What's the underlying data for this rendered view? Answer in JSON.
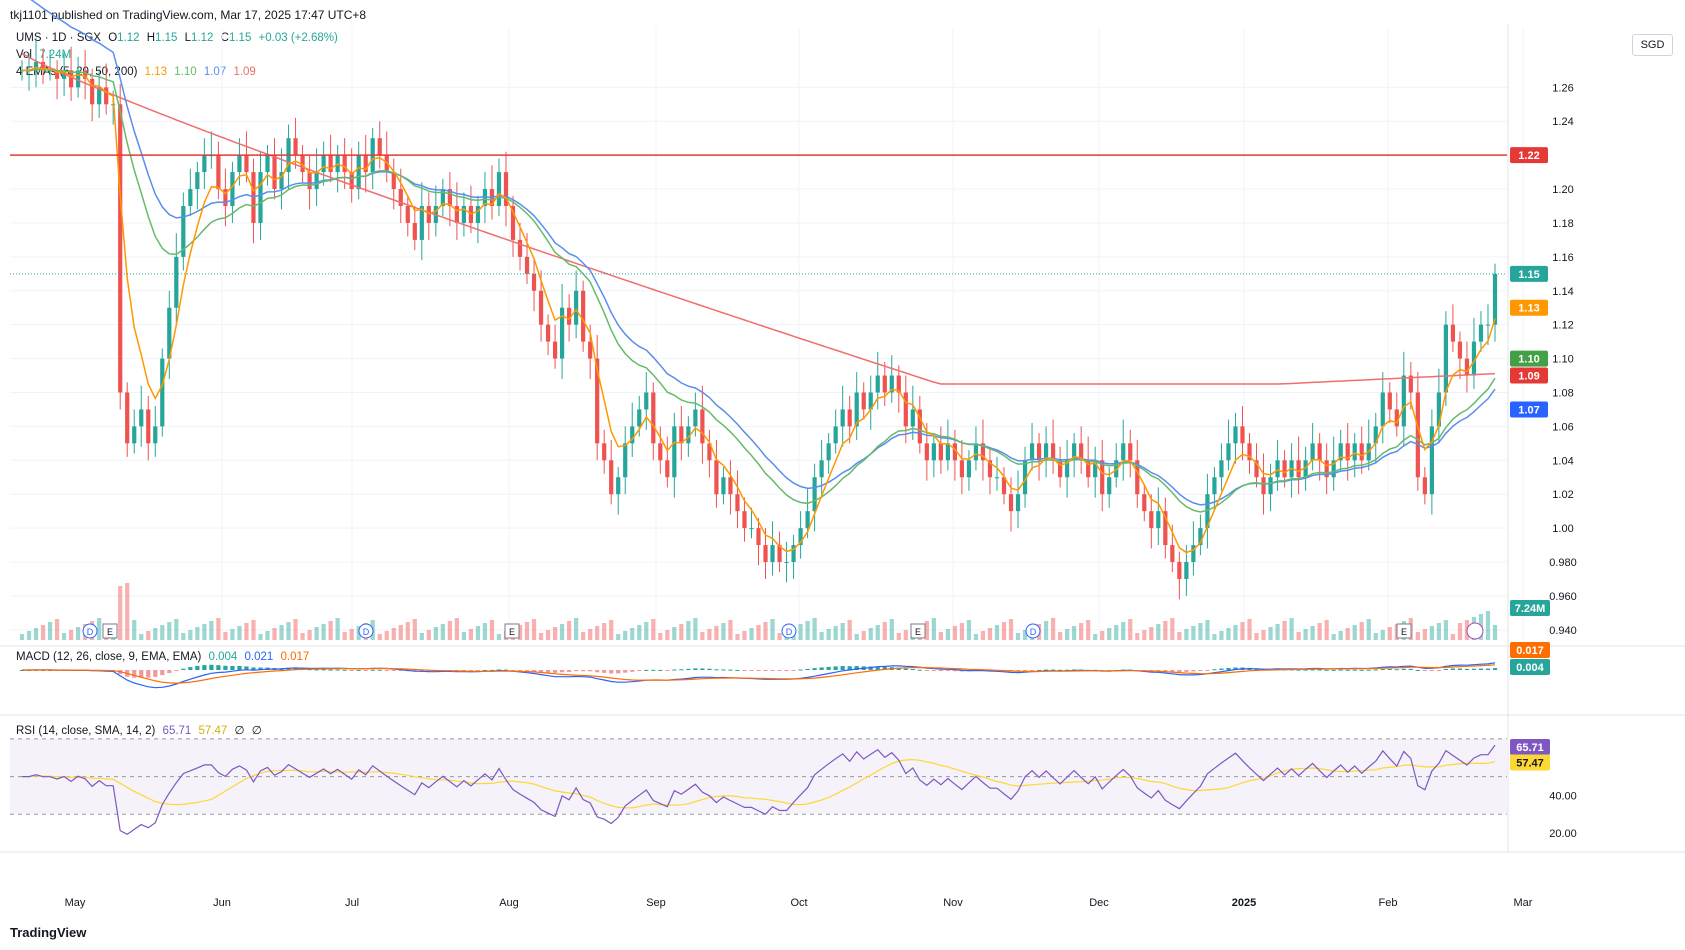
{
  "header": {
    "publisher": "tkj1101 published on TradingView.com, Mar 17, 2025 17:47 UTC+8",
    "symbol": "UMS · 1D · SGX",
    "ohlc": {
      "o_label": "O",
      "o": "1.12",
      "h_label": "H",
      "h": "1.15",
      "l_label": "L",
      "l": "1.12",
      "c_label": "C",
      "c": "1.15",
      "change": "+0.03 (+2.68%)"
    },
    "vol_label": "Vol",
    "vol_value": "7.24M",
    "ema_label": "4 EMAs (5, 20, 50, 200)",
    "ema_values": [
      "1.13",
      "1.10",
      "1.07",
      "1.09"
    ],
    "macd_label": "MACD (12, 26, close, 9, EMA, EMA)",
    "macd_values": [
      "0.004",
      "0.021",
      "0.017"
    ],
    "rsi_label": "RSI (14, close, SMA, 14, 2)",
    "rsi_values": [
      "65.71",
      "57.47",
      "∅",
      "∅"
    ],
    "currency": "SGD"
  },
  "brand": "TradingView",
  "colors": {
    "up": "#26a69a",
    "down": "#ef5350",
    "ema5": "#ff9800",
    "ema20": "#66bb6a",
    "ema50": "#5b8def",
    "ema200": "#f06e6e",
    "resistance": "#e53935",
    "rsi": "#7e57c2",
    "rsi_ma": "#fdd835",
    "macd": "#2962ff",
    "signal": "#ff6d00"
  },
  "chart_data": {
    "type": "candlestick",
    "symbol": "UMS",
    "exchange": "SGX",
    "interval": "1D",
    "price_axis_ticks": [
      0.94,
      0.96,
      0.98,
      1.0,
      1.02,
      1.04,
      1.06,
      1.08,
      1.1,
      1.12,
      1.14,
      1.16,
      1.18,
      1.2,
      1.24,
      1.26
    ],
    "price_axis_tick_labels": [
      "0.940",
      "0.960",
      "0.980",
      "1.00",
      "1.02",
      "1.04",
      "1.06",
      "1.08",
      "1.10",
      "1.12",
      "1.14",
      "1.16",
      "1.18",
      "1.20",
      "1.24",
      "1.26"
    ],
    "ylim": [
      0.934,
      1.295
    ],
    "time_axis_labels": [
      "May",
      "Jun",
      "Jul",
      "Aug",
      "Sep",
      "Oct",
      "Nov",
      "Dec",
      "2025",
      "Feb",
      "Mar"
    ],
    "price_tags": [
      {
        "label": "1.22",
        "value": 1.22,
        "color": "#e53935"
      },
      {
        "label": "1.15",
        "value": 1.15,
        "color": "#26a69a"
      },
      {
        "label": "1.13",
        "value": 1.13,
        "color": "#ff9800"
      },
      {
        "label": "1.10",
        "value": 1.1,
        "color": "#43a047"
      },
      {
        "label": "1.09",
        "value": 1.09,
        "color": "#e53935"
      },
      {
        "label": "1.07",
        "value": 1.07,
        "color": "#2962ff"
      }
    ],
    "volume_tag": "7.24M",
    "horizontal_line": 1.22,
    "last_price": 1.15,
    "closes": [
      1.27,
      1.27,
      1.275,
      1.27,
      1.27,
      1.265,
      1.27,
      1.26,
      1.27,
      1.265,
      1.25,
      1.26,
      1.25,
      1.25,
      1.08,
      1.05,
      1.06,
      1.07,
      1.05,
      1.06,
      1.1,
      1.13,
      1.16,
      1.19,
      1.2,
      1.21,
      1.22,
      1.22,
      1.2,
      1.19,
      1.21,
      1.22,
      1.21,
      1.18,
      1.21,
      1.22,
      1.2,
      1.21,
      1.23,
      1.22,
      1.21,
      1.2,
      1.21,
      1.22,
      1.21,
      1.22,
      1.21,
      1.2,
      1.22,
      1.21,
      1.23,
      1.22,
      1.21,
      1.2,
      1.19,
      1.18,
      1.17,
      1.19,
      1.18,
      1.19,
      1.2,
      1.19,
      1.18,
      1.19,
      1.18,
      1.19,
      1.2,
      1.19,
      1.21,
      1.19,
      1.17,
      1.16,
      1.15,
      1.14,
      1.12,
      1.11,
      1.1,
      1.13,
      1.12,
      1.14,
      1.11,
      1.1,
      1.05,
      1.04,
      1.02,
      1.03,
      1.05,
      1.06,
      1.07,
      1.08,
      1.05,
      1.04,
      1.03,
      1.06,
      1.05,
      1.06,
      1.07,
      1.05,
      1.04,
      1.02,
      1.03,
      1.02,
      1.01,
      1.0,
      1.0,
      0.99,
      0.98,
      0.99,
      0.98,
      0.98,
      0.99,
      1.0,
      1.01,
      1.03,
      1.04,
      1.05,
      1.06,
      1.07,
      1.06,
      1.08,
      1.07,
      1.08,
      1.09,
      1.08,
      1.09,
      1.08,
      1.06,
      1.07,
      1.05,
      1.04,
      1.05,
      1.04,
      1.05,
      1.04,
      1.03,
      1.04,
      1.05,
      1.04,
      1.03,
      1.03,
      1.02,
      1.01,
      1.02,
      1.04,
      1.05,
      1.04,
      1.05,
      1.04,
      1.03,
      1.04,
      1.05,
      1.04,
      1.03,
      1.04,
      1.02,
      1.03,
      1.04,
      1.05,
      1.04,
      1.02,
      1.01,
      1.0,
      1.01,
      0.99,
      0.98,
      0.97,
      0.98,
      0.99,
      1.0,
      1.02,
      1.03,
      1.04,
      1.05,
      1.06,
      1.05,
      1.04,
      1.03,
      1.02,
      1.03,
      1.04,
      1.03,
      1.04,
      1.03,
      1.04,
      1.05,
      1.04,
      1.03,
      1.04,
      1.05,
      1.04,
      1.05,
      1.04,
      1.05,
      1.06,
      1.08,
      1.07,
      1.06,
      1.09,
      1.08,
      1.03,
      1.02,
      1.06,
      1.08,
      1.12,
      1.11,
      1.1,
      1.09,
      1.11,
      1.12,
      1.12,
      1.15
    ],
    "indicators": {
      "ema5": 1.13,
      "ema20": 1.1,
      "ema50": 1.07,
      "ema200": 1.09,
      "volume": "7.24M",
      "macd": {
        "histogram": 0.004,
        "macd": 0.021,
        "signal": 0.017,
        "tags": [
          "0.017",
          "0.004"
        ]
      },
      "rsi": {
        "rsi": 65.71,
        "ma": 57.47,
        "axis_ticks": [
          20.0,
          40.0
        ],
        "axis_tick_labels": [
          "20.00",
          "40.00"
        ],
        "tags": [
          "65.71",
          "57.47"
        ]
      }
    },
    "event_markers": [
      {
        "type": "D",
        "month": "May"
      },
      {
        "type": "E",
        "month": "May"
      },
      {
        "type": "D",
        "month": "Jul"
      },
      {
        "type": "E",
        "month": "Aug"
      },
      {
        "type": "D",
        "month": "Oct"
      },
      {
        "type": "E",
        "month": "Nov"
      },
      {
        "type": "D",
        "month": "Dec"
      },
      {
        "type": "E",
        "month": "Mar"
      }
    ]
  }
}
